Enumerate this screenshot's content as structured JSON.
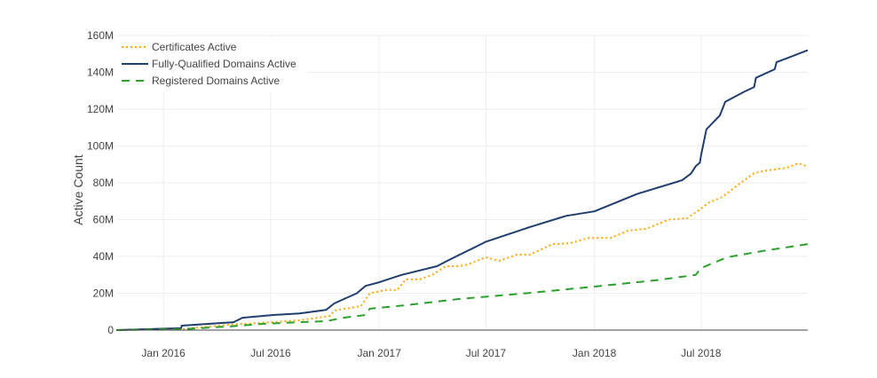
{
  "chart_data": {
    "type": "line",
    "title": "",
    "xlabel": "",
    "ylabel": "Active Count",
    "xlim": [
      "2015-10-13",
      "2018-12-29"
    ],
    "ylim": [
      0,
      160
    ],
    "y_unit": "M",
    "grid": true,
    "legend_position": "top-left",
    "x_ticks": [
      {
        "date": "2016-01-01",
        "label": "Jan 2016"
      },
      {
        "date": "2016-07-01",
        "label": "Jul 2016"
      },
      {
        "date": "2017-01-01",
        "label": "Jan 2017"
      },
      {
        "date": "2017-07-01",
        "label": "Jul 2017"
      },
      {
        "date": "2018-01-01",
        "label": "Jan 2018"
      },
      {
        "date": "2018-07-01",
        "label": "Jul 2018"
      }
    ],
    "y_ticks": [
      {
        "value": 0,
        "label": "0"
      },
      {
        "value": 20,
        "label": "20M"
      },
      {
        "value": 40,
        "label": "40M"
      },
      {
        "value": 60,
        "label": "60M"
      },
      {
        "value": 80,
        "label": "80M"
      },
      {
        "value": 100,
        "label": "100M"
      },
      {
        "value": 120,
        "label": "120M"
      },
      {
        "value": 140,
        "label": "140M"
      },
      {
        "value": 160,
        "label": "160M"
      }
    ],
    "series": [
      {
        "name": "Certificates Active",
        "color": "#ffa500",
        "dash": "dot",
        "points": [
          [
            "2015-10-13",
            0
          ],
          [
            "2016-01-31",
            0.5
          ],
          [
            "2016-04-22",
            3
          ],
          [
            "2016-06-20",
            4
          ],
          [
            "2016-08-19",
            5.3
          ],
          [
            "2016-10-10",
            7.7
          ],
          [
            "2016-10-17",
            10.6
          ],
          [
            "2016-12-01",
            13
          ],
          [
            "2016-12-16",
            20
          ],
          [
            "2017-01-16",
            22
          ],
          [
            "2017-01-31",
            21.6
          ],
          [
            "2017-02-15",
            27.5
          ],
          [
            "2017-03-10",
            27.5
          ],
          [
            "2017-04-01",
            30
          ],
          [
            "2017-04-24",
            34.7
          ],
          [
            "2017-05-17",
            34.7
          ],
          [
            "2017-06-01",
            35.7
          ],
          [
            "2017-07-01",
            39.5
          ],
          [
            "2017-07-24",
            37.6
          ],
          [
            "2017-08-23",
            41
          ],
          [
            "2017-09-14",
            41
          ],
          [
            "2017-10-22",
            46.7
          ],
          [
            "2017-11-21",
            47.2
          ],
          [
            "2017-12-21",
            50
          ],
          [
            "2018-01-28",
            50
          ],
          [
            "2018-02-28",
            54
          ],
          [
            "2018-03-30",
            55
          ],
          [
            "2018-05-07",
            60
          ],
          [
            "2018-06-07",
            60.7
          ],
          [
            "2018-06-29",
            65.5
          ],
          [
            "2018-07-15",
            69.4
          ],
          [
            "2018-08-06",
            72.3
          ],
          [
            "2018-08-29",
            78
          ],
          [
            "2018-09-29",
            85.3
          ],
          [
            "2018-10-21",
            86.7
          ],
          [
            "2018-11-21",
            88
          ],
          [
            "2018-12-14",
            90.6
          ],
          [
            "2018-12-29",
            88.7
          ]
        ]
      },
      {
        "name": "Fully-Qualified Domains Active",
        "color": "#1f3d6e",
        "dash": "solid",
        "points": [
          [
            "2015-10-13",
            0
          ],
          [
            "2016-01-31",
            1
          ],
          [
            "2016-02-01",
            2.4
          ],
          [
            "2016-04-29",
            4.3
          ],
          [
            "2016-05-14",
            6.7
          ],
          [
            "2016-07-05",
            8.2
          ],
          [
            "2016-08-19",
            9
          ],
          [
            "2016-10-03",
            11
          ],
          [
            "2016-10-17",
            14.5
          ],
          [
            "2016-11-24",
            20
          ],
          [
            "2016-12-09",
            24
          ],
          [
            "2017-01-01",
            26
          ],
          [
            "2017-02-08",
            30
          ],
          [
            "2017-04-09",
            34.7
          ],
          [
            "2017-05-02",
            38.5
          ],
          [
            "2017-06-23",
            46.7
          ],
          [
            "2017-07-01",
            48
          ],
          [
            "2017-09-14",
            56
          ],
          [
            "2017-11-14",
            62
          ],
          [
            "2018-01-01",
            64.5
          ],
          [
            "2018-03-15",
            74
          ],
          [
            "2018-05-30",
            81.4
          ],
          [
            "2018-06-14",
            85
          ],
          [
            "2018-06-22",
            89
          ],
          [
            "2018-06-29",
            91
          ],
          [
            "2018-07-01",
            95
          ],
          [
            "2018-07-10",
            109
          ],
          [
            "2018-08-02",
            116.6
          ],
          [
            "2018-08-11",
            124
          ],
          [
            "2018-09-13",
            129.6
          ],
          [
            "2018-09-29",
            132
          ],
          [
            "2018-10-02",
            137
          ],
          [
            "2018-11-03",
            141.7
          ],
          [
            "2018-11-06",
            145.5
          ],
          [
            "2018-12-29",
            152
          ]
        ]
      },
      {
        "name": "Registered Domains Active",
        "color": "#2ca02c",
        "dash": "dash",
        "points": [
          [
            "2015-10-13",
            0
          ],
          [
            "2016-01-31",
            0.5
          ],
          [
            "2016-04-22",
            2
          ],
          [
            "2016-06-20",
            3.4
          ],
          [
            "2016-08-19",
            4.3
          ],
          [
            "2016-10-03",
            4.8
          ],
          [
            "2016-11-01",
            6.7
          ],
          [
            "2016-12-09",
            8.2
          ],
          [
            "2016-12-16",
            11.6
          ],
          [
            "2017-02-15",
            13.5
          ],
          [
            "2017-05-17",
            16.9
          ],
          [
            "2017-09-14",
            20.2
          ],
          [
            "2018-01-01",
            23.6
          ],
          [
            "2018-04-14",
            27
          ],
          [
            "2018-06-22",
            30
          ],
          [
            "2018-07-01",
            33.7
          ],
          [
            "2018-08-14",
            39.5
          ],
          [
            "2018-10-14",
            43
          ],
          [
            "2018-12-29",
            46.7
          ]
        ]
      }
    ]
  }
}
